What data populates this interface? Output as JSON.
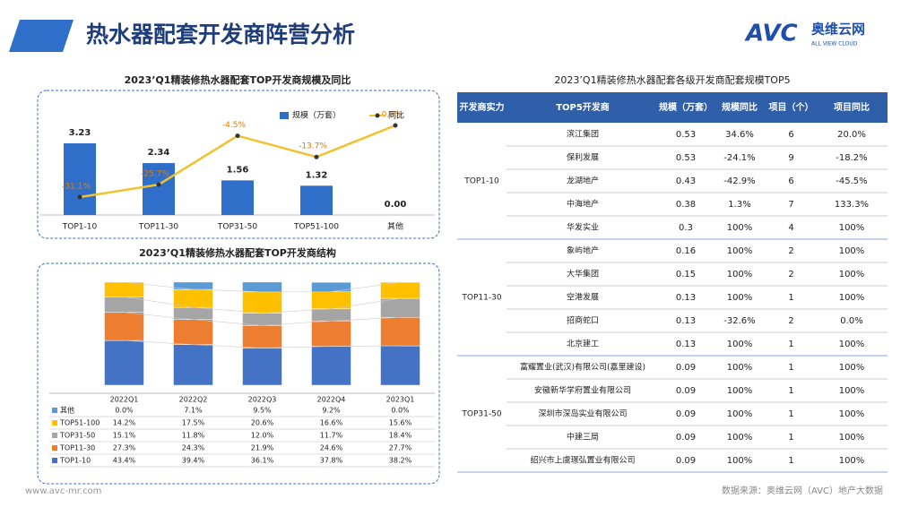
{
  "header": {
    "title": "热水器配套开发商阵营分析",
    "logo": "AVC",
    "logo_cn": "奥维云网",
    "logo_en": "ALL VIEW CLOUD"
  },
  "chart_data": [
    {
      "type": "bar_line",
      "title": "2023’Q1精装修热水器配套TOP开发商规模及同比",
      "categories": [
        "TOP1-10",
        "TOP11-30",
        "TOP31-50",
        "TOP51-100",
        "其他"
      ],
      "series": [
        {
          "name": "规模（万套）",
          "color": "#2f6fc9",
          "type": "bar",
          "values": [
            3.23,
            2.34,
            1.56,
            1.32,
            0.0
          ],
          "value_labels": [
            "3.23",
            "2.34",
            "1.56",
            "1.32",
            "0.00"
          ]
        },
        {
          "name": "同比",
          "color": "#f2c12e",
          "type": "line",
          "values": [
            -31.1,
            -25.7,
            -4.5,
            -13.7,
            0.0
          ],
          "value_labels": [
            "-31.1%",
            "-25.7%",
            "-4.5%",
            "-13.7%",
            "0.0%"
          ]
        }
      ]
    },
    {
      "type": "stacked_bar",
      "title": "2023’Q1精装修热水器配套TOP开发商结构",
      "categories": [
        "2022Q1",
        "2022Q2",
        "2022Q3",
        "2022Q4",
        "2023Q1"
      ],
      "series": [
        {
          "name": "TOP1-10",
          "color": "#4472c4",
          "values": [
            43.4,
            39.4,
            36.1,
            37.8,
            38.2
          ],
          "value_labels": [
            "43.4%",
            "39.4%",
            "36.1%",
            "37.8%",
            "38.2%"
          ]
        },
        {
          "name": "TOP11-30",
          "color": "#ed7d31",
          "values": [
            27.3,
            24.3,
            21.9,
            24.6,
            27.7
          ],
          "value_labels": [
            "27.3%",
            "24.3%",
            "21.9%",
            "24.6%",
            "27.7%"
          ]
        },
        {
          "name": "TOP31-50",
          "color": "#a5a5a5",
          "values": [
            15.1,
            11.8,
            12.0,
            11.7,
            18.4
          ],
          "value_labels": [
            "15.1%",
            "11.8%",
            "12.0%",
            "11.7%",
            "18.4%"
          ]
        },
        {
          "name": "TOP51-100",
          "color": "#ffc000",
          "values": [
            14.2,
            17.5,
            20.6,
            16.6,
            15.6
          ],
          "value_labels": [
            "14.2%",
            "17.5%",
            "20.6%",
            "16.6%",
            "15.6%"
          ]
        },
        {
          "name": "其他",
          "color": "#5b9bd5",
          "values": [
            0.0,
            7.1,
            9.5,
            9.2,
            0.0
          ],
          "value_labels": [
            "0.0%",
            "7.1%",
            "9.5%",
            "9.2%",
            "0.0%"
          ]
        }
      ]
    }
  ],
  "table": {
    "title": "2023’Q1精装修热水器配套各级开发商配套规模TOP5",
    "headers": [
      "开发商实力",
      "TOP5开发商",
      "规模（万套）",
      "规模同比",
      "项目（个）",
      "项目同比"
    ],
    "groups": [
      {
        "tier": "TOP1-10",
        "rows": [
          [
            "滨江集团",
            "0.53",
            "34.6%",
            "6",
            "20.0%"
          ],
          [
            "保利发展",
            "0.53",
            "-24.1%",
            "9",
            "-18.2%"
          ],
          [
            "龙湖地产",
            "0.43",
            "-42.9%",
            "6",
            "-45.5%"
          ],
          [
            "中海地产",
            "0.38",
            "1.3%",
            "7",
            "133.3%"
          ],
          [
            "华发实业",
            "0.3",
            "100%",
            "4",
            "100%"
          ]
        ]
      },
      {
        "tier": "TOP11-30",
        "rows": [
          [
            "象屿地产",
            "0.16",
            "100%",
            "2",
            "100%"
          ],
          [
            "大华集团",
            "0.15",
            "100%",
            "2",
            "100%"
          ],
          [
            "空港发展",
            "0.13",
            "100%",
            "1",
            "100%"
          ],
          [
            "招商蛇口",
            "0.13",
            "-32.6%",
            "2",
            "0.0%"
          ],
          [
            "北京建工",
            "0.13",
            "100%",
            "1",
            "100%"
          ]
        ]
      },
      {
        "tier": "TOP31-50",
        "rows": [
          [
            "富耀置业(武汉)有限公司(嘉里建设)",
            "0.09",
            "100%",
            "1",
            "100%"
          ],
          [
            "安徽新华学府置业有限公司",
            "0.09",
            "100%",
            "1",
            "100%"
          ],
          [
            "深圳市深岛实业有限公司",
            "0.09",
            "100%",
            "1",
            "100%"
          ],
          [
            "中建三局",
            "0.09",
            "100%",
            "1",
            "100%"
          ],
          [
            "绍兴市上虞璟弘置业有限公司",
            "0.09",
            "100%",
            "1",
            "100%"
          ]
        ]
      }
    ]
  },
  "footer": {
    "url": "www.avc-mr.com",
    "source": "数据来源：奥维云网（AVC）地产大数据"
  }
}
